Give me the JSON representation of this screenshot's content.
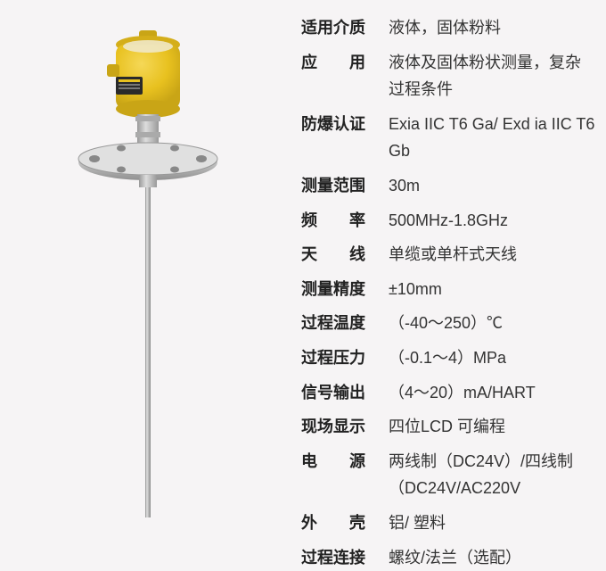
{
  "specs": [
    {
      "label": "适用介质",
      "value": "液体，固体粉料",
      "justify": false
    },
    {
      "label": "应　　用",
      "value": "液体及固体粉状测量，复杂过程条件",
      "justify": false
    },
    {
      "label": "防爆认证",
      "value": "Exia IIC T6 Ga/ Exd ia IIC T6 Gb",
      "justify": false
    },
    {
      "label": "测量范围",
      "value": "30m",
      "justify": false
    },
    {
      "label": "频　　率",
      "value": "500MHz-1.8GHz",
      "justify": false
    },
    {
      "label": "天　　线",
      "value": "单缆或单杆式天线",
      "justify": false
    },
    {
      "label": "测量精度",
      "value": "±10mm",
      "justify": false
    },
    {
      "label": "过程温度",
      "value": "（-40～250）℃",
      "justify": false
    },
    {
      "label": "过程压力",
      "value": "（-0.1～4）MPa",
      "justify": false
    },
    {
      "label": "信号输出",
      "value": "（4～20）mA/HART",
      "justify": false
    },
    {
      "label": "现场显示",
      "value": "四位LCD 可编程",
      "justify": false
    },
    {
      "label": "电　　源",
      "value": "两线制（DC24V）/四线制（DC24V/AC220V",
      "justify": false
    },
    {
      "label": "外　　壳",
      "value": "铝/ 塑料",
      "justify": false
    },
    {
      "label": "过程连接",
      "value": "螺纹/法兰（选配）",
      "justify": false
    }
  ],
  "device": {
    "head_color": "#e8c11f",
    "head_top": "#d4ae1a",
    "flange_color": "#bfbfbf",
    "flange_light": "#e8e8e8",
    "probe_color": "#b8b8b8"
  }
}
